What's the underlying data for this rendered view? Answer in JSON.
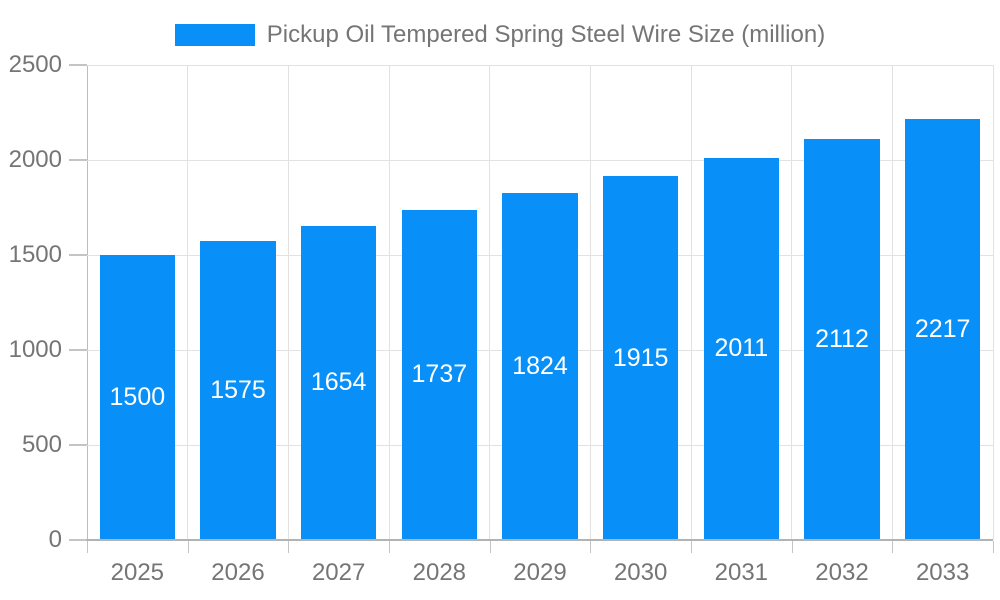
{
  "legend": {
    "label": "Pickup Oil Tempered Spring Steel Wire Size (million)"
  },
  "colors": {
    "bar": "#0990f8",
    "bar_label": "#ffffff",
    "axis_text": "#757575",
    "gridline": "#e2e2e2",
    "axis_line": "#b3b3b3",
    "background": "#ffffff"
  },
  "chart_data": {
    "type": "bar",
    "title": "",
    "xlabel": "",
    "ylabel": "",
    "categories": [
      "2025",
      "2026",
      "2027",
      "2028",
      "2029",
      "2030",
      "2031",
      "2032",
      "2033"
    ],
    "series": [
      {
        "name": "Pickup Oil Tempered Spring Steel Wire Size (million)",
        "color": "#0990f8",
        "values": [
          1500,
          1575,
          1654,
          1737,
          1824,
          1915,
          2011,
          2112,
          2217
        ]
      }
    ],
    "bar_labels_visible": true,
    "ylim": [
      0,
      2500
    ],
    "yticks": [
      0,
      500,
      1000,
      1500,
      2000,
      2500
    ],
    "grid": true,
    "legend_position": "top"
  }
}
